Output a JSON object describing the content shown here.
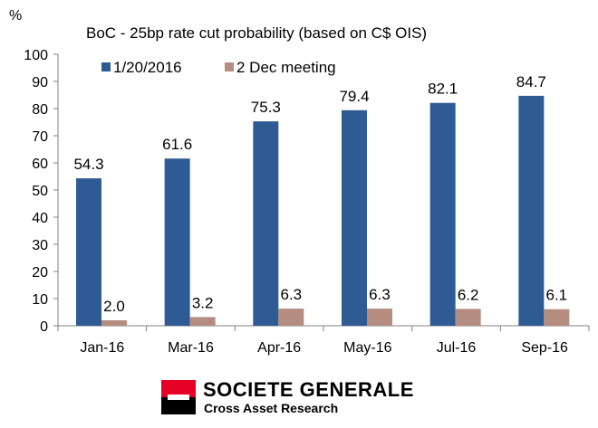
{
  "chart_data": {
    "type": "bar",
    "title": "BoC - 25bp  rate cut probability  (based on C$ OIS)",
    "unit_label": "%",
    "categories": [
      "Jan-16",
      "Mar-16",
      "Apr-16",
      "May-16",
      "Jul-16",
      "Sep-16"
    ],
    "series": [
      {
        "name": "1/20/2016",
        "color": "#2e5b93",
        "values": [
          54.3,
          61.6,
          75.3,
          79.4,
          82.1,
          84.7
        ],
        "labels": [
          "54.3",
          "61.6",
          "75.3",
          "79.4",
          "82.1",
          "84.7"
        ]
      },
      {
        "name": "2 Dec meeting",
        "color": "#b48c80",
        "values": [
          2.0,
          3.2,
          6.3,
          6.3,
          6.2,
          6.1
        ],
        "labels": [
          "2.0",
          "3.2",
          "6.3",
          "6.3",
          "6.2",
          "6.1"
        ]
      }
    ],
    "ylim": [
      0,
      100
    ],
    "yticks": [
      0,
      10,
      20,
      30,
      40,
      50,
      60,
      70,
      80,
      90,
      100
    ],
    "grid": false,
    "legend_position": "top-left"
  },
  "branding": {
    "name": "SOCIETE GENERALE",
    "subtitle": "Cross Asset Research"
  }
}
